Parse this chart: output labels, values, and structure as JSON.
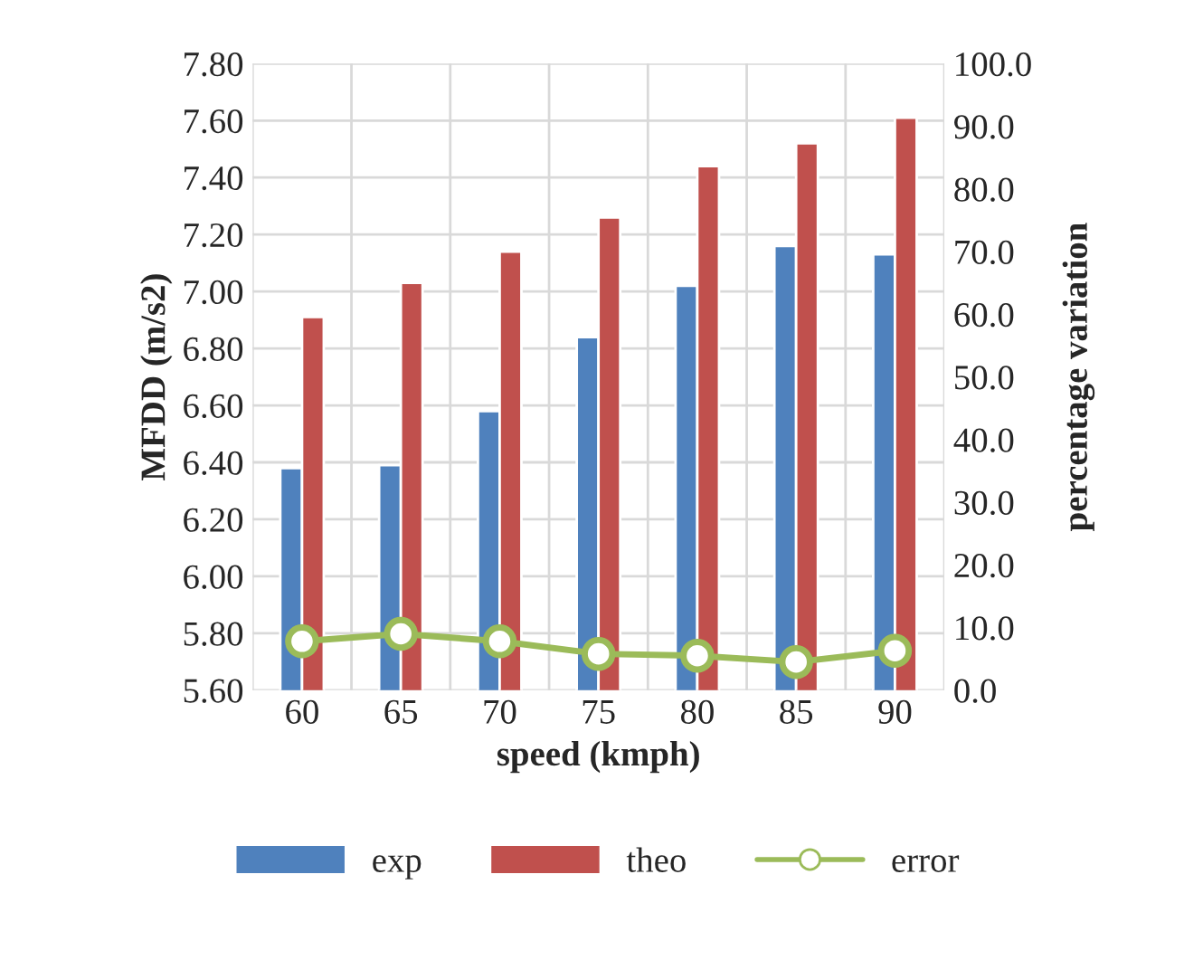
{
  "chart_data": {
    "type": "bar",
    "xlabel": "speed (kmph)",
    "ylabel": "MFDD (m/s2)",
    "y2label": "percentage variation",
    "categories": [
      "60",
      "65",
      "70",
      "75",
      "80",
      "85",
      "90"
    ],
    "series": [
      {
        "name": "exp",
        "color": "#4f81bd",
        "values": [
          6.38,
          6.39,
          6.58,
          6.84,
          7.02,
          7.16,
          7.13
        ]
      },
      {
        "name": "theo",
        "color": "#c0504d",
        "values": [
          6.91,
          7.03,
          7.14,
          7.26,
          7.44,
          7.52,
          7.61
        ]
      },
      {
        "name": "error",
        "type": "line",
        "axis": "y2",
        "color": "#9bbb59",
        "marker": "circle",
        "values": [
          7.8,
          9.0,
          7.8,
          5.8,
          5.5,
          4.5,
          6.3
        ]
      }
    ],
    "ylim": [
      5.6,
      7.8
    ],
    "yticks": [
      {
        "value": 5.6,
        "label": "5.60"
      },
      {
        "value": 5.8,
        "label": "5.80"
      },
      {
        "value": 6.0,
        "label": "6.00"
      },
      {
        "value": 6.2,
        "label": "6.20"
      },
      {
        "value": 6.4,
        "label": "6.40"
      },
      {
        "value": 6.6,
        "label": "6.60"
      },
      {
        "value": 6.8,
        "label": "6.80"
      },
      {
        "value": 7.0,
        "label": "7.00"
      },
      {
        "value": 7.2,
        "label": "7.20"
      },
      {
        "value": 7.4,
        "label": "7.40"
      },
      {
        "value": 7.6,
        "label": "7.60"
      },
      {
        "value": 7.8,
        "label": "7.80"
      }
    ],
    "y2lim": [
      0,
      100
    ],
    "y2ticks": [
      {
        "value": 0,
        "label": "0.0"
      },
      {
        "value": 10,
        "label": "10.0"
      },
      {
        "value": 20,
        "label": "20.0"
      },
      {
        "value": 30,
        "label": "30.0"
      },
      {
        "value": 40,
        "label": "40.0"
      },
      {
        "value": 50,
        "label": "50.0"
      },
      {
        "value": 60,
        "label": "60.0"
      },
      {
        "value": 70,
        "label": "70.0"
      },
      {
        "value": 80,
        "label": "80.0"
      },
      {
        "value": 90,
        "label": "90.0"
      },
      {
        "value": 100,
        "label": "100.0"
      }
    ],
    "grid": true,
    "legend": "bottom"
  }
}
